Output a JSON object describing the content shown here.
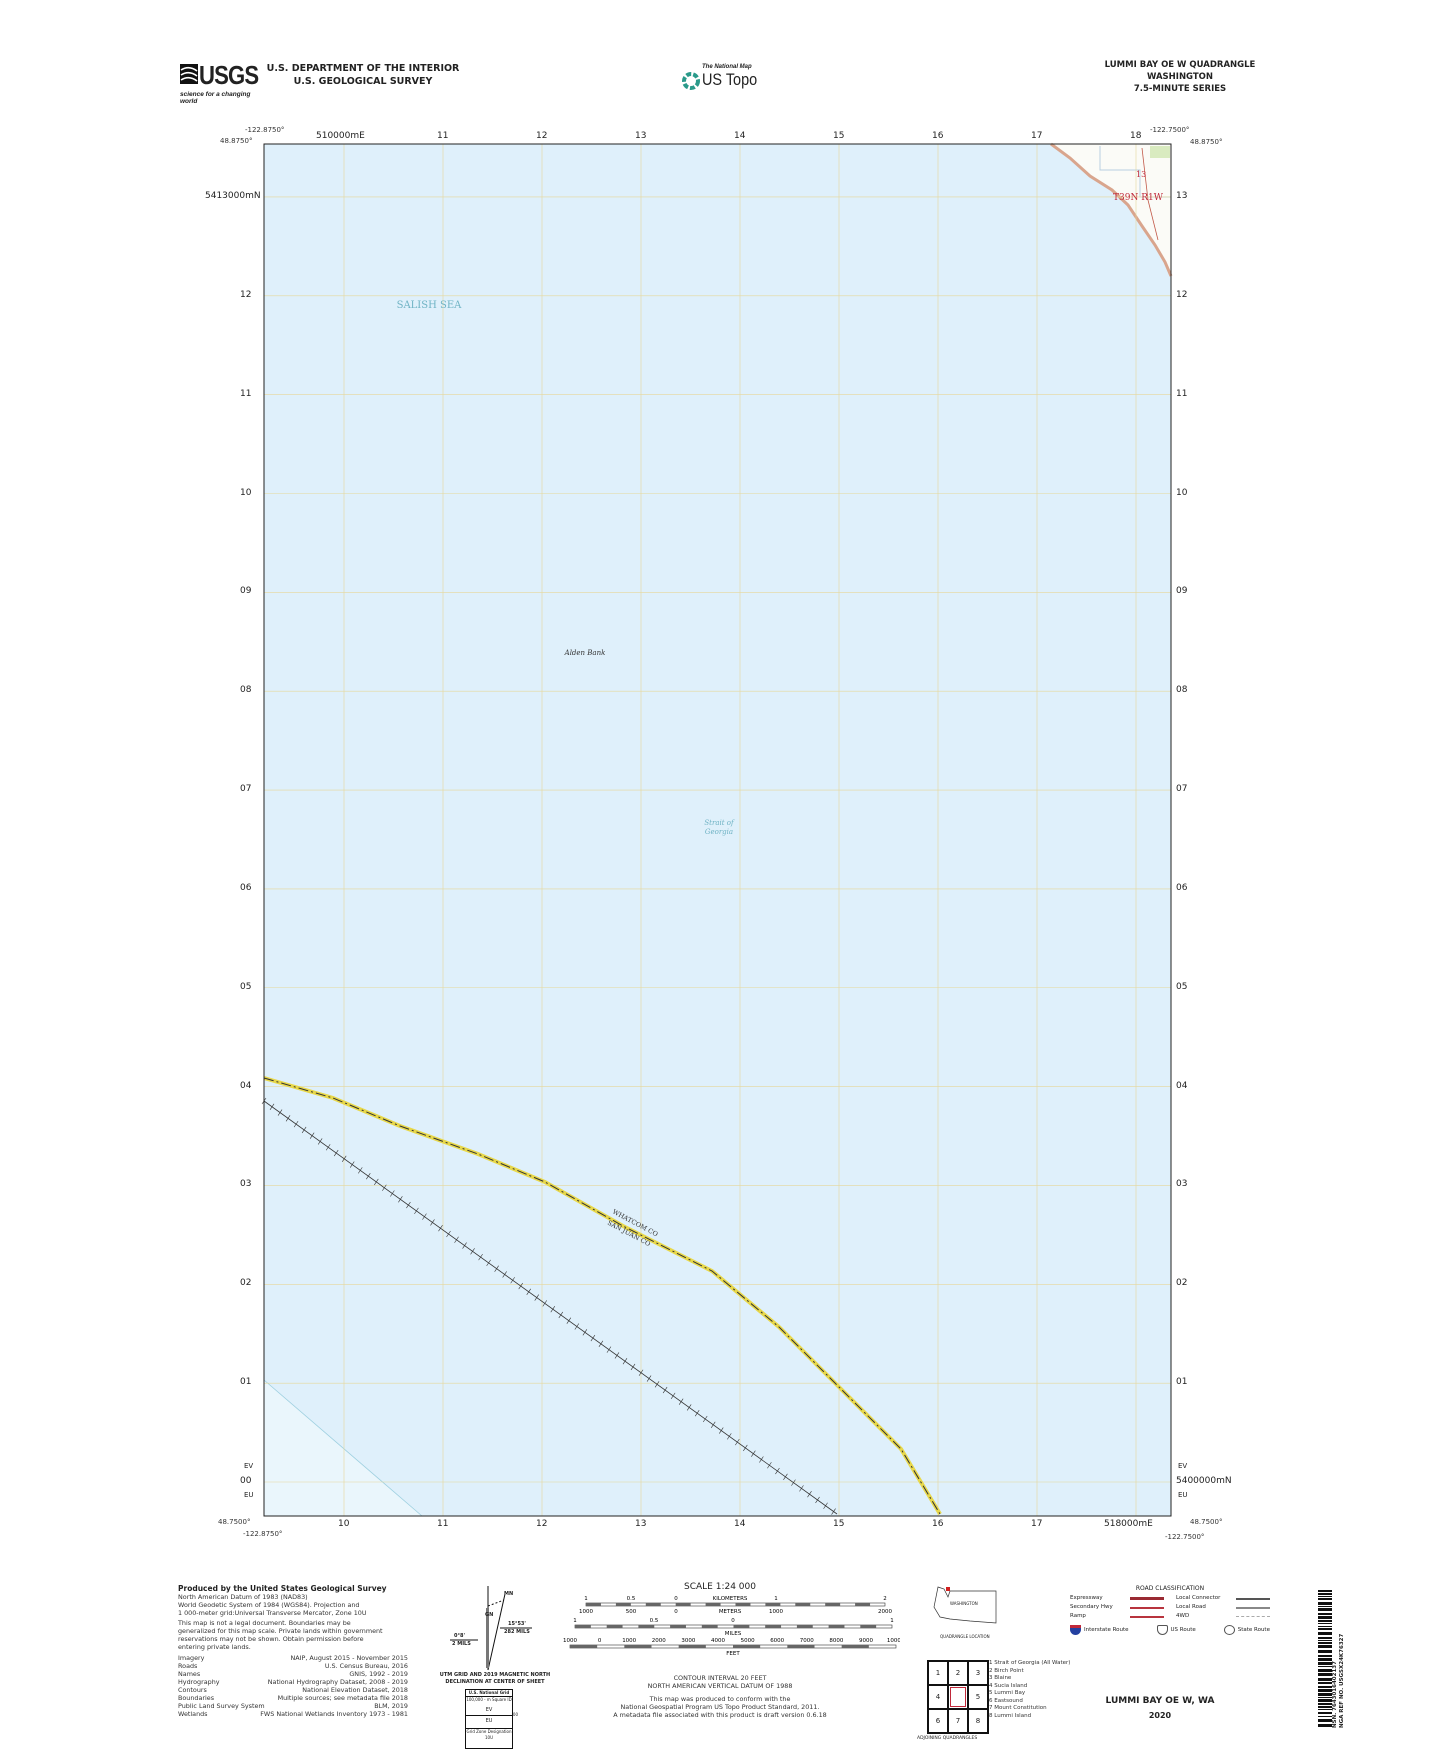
{
  "header": {
    "usgs_logo_text": "USGS",
    "usgs_tagline": "science for a changing world",
    "department": "U.S. DEPARTMENT OF THE INTERIOR",
    "survey": "U.S. GEOLOGICAL SURVEY",
    "national_map": "The National Map",
    "us_topo": "US Topo",
    "quad_title": "LUMMI BAY OE W QUADRANGLE",
    "state": "WASHINGTON",
    "series": "7.5-MINUTE SERIES"
  },
  "map": {
    "corners": {
      "top_left_lon": "-122.8750°",
      "top_left_lat": "48.8750°",
      "top_right_lon": "-122.7500°",
      "top_right_lat": "48.8750°",
      "bottom_left_lon": "-122.8750°",
      "bottom_left_lat": "48.7500°",
      "bottom_right_lon": "-122.7500°",
      "bottom_right_lat": "48.7500°"
    },
    "eastings_top": [
      "510000mE",
      "11",
      "12",
      "13",
      "14",
      "15",
      "16",
      "17",
      "18"
    ],
    "eastings_bottom": [
      "10",
      "11",
      "12",
      "13",
      "14",
      "15",
      "16",
      "17",
      "518000mE"
    ],
    "northings_left": [
      "5413000mN",
      "12",
      "11",
      "10",
      "09",
      "08",
      "07",
      "06",
      "05",
      "04",
      "03",
      "02",
      "01",
      "00"
    ],
    "northings_right": [
      "13",
      "12",
      "11",
      "10",
      "09",
      "08",
      "07",
      "06",
      "05",
      "04",
      "03",
      "02",
      "01",
      "5400000mN"
    ],
    "grid_zone_left": {
      "upper": "EV",
      "lower": "EU"
    },
    "grid_zone_right": {
      "upper": "EV",
      "lower": "EU"
    },
    "labels": {
      "salish_sea": "SALISH SEA",
      "alden_bank": "Alden Bank",
      "strait_line1": "Strait of",
      "strait_line2": "Georgia",
      "county_north": "WHATCOM CO",
      "county_south": "SAN JUAN CO",
      "township": "T39N R1W",
      "section": "13"
    },
    "colors": {
      "water": "#dff0fb",
      "grid": "#e6d79a",
      "land": "#fbfbf7",
      "boundary": "#e8d84a",
      "township": "#c0283a"
    }
  },
  "footer": {
    "produced_by": "Produced by the United States Geological Survey",
    "datum_lines": [
      "North American Datum of 1983 (NAD83)",
      "World Geodetic System of 1984 (WGS84).  Projection and",
      "1 000-meter grid:Universal Transverse Mercator, Zone 10U"
    ],
    "disclaimer": [
      "This map is not a legal document. Boundaries may be",
      "generalized for this map scale. Private lands within government",
      "reservations may not be shown. Obtain permission before",
      "entering private lands."
    ],
    "credits": [
      {
        "item": "Imagery",
        "source": "NAIP, August 2015 - November 2015"
      },
      {
        "item": "Roads",
        "source": "U.S. Census Bureau, 2016"
      },
      {
        "item": "Names",
        "source": "GNIS, 1992 - 2019"
      },
      {
        "item": "Hydrography",
        "source": "National Hydrography Dataset, 2008 - 2019"
      },
      {
        "item": "Contours",
        "source": "National Elevation Dataset, 2018"
      },
      {
        "item": "Boundaries",
        "source": "Multiple sources; see metadata file 2018"
      },
      {
        "item": "Public Land Survey System",
        "source": "BLM, 2019"
      },
      {
        "item": "Wetlands",
        "source": "FWS National Wetlands Inventory 1973 - 1981"
      }
    ],
    "declination": {
      "gn_angle": "0°8'",
      "gn_mils": "2 MILS",
      "mn_angle": "15°53'",
      "mn_mils": "282 MILS",
      "gn_label": "GN",
      "mn_label": "MN",
      "caption_line1": "UTM GRID AND 2019 MAGNETIC NORTH",
      "caption_line2": "DECLINATION AT CENTER OF SHEET"
    },
    "grid_box": {
      "title": "U.S. National Grid",
      "subtitle": "100,000 - m Square ID",
      "upper": "EV",
      "lower": "EU",
      "easting": "00",
      "zone_title": "Grid Zone Designation",
      "zone": "10U"
    },
    "scale": {
      "title": "SCALE 1:24 000",
      "km_labels": [
        "1",
        "0.5",
        "0",
        "1",
        "2"
      ],
      "km_unit": "KILOMETERS",
      "m_labels": [
        "1000",
        "500",
        "0",
        "1000",
        "2000"
      ],
      "m_unit": "METERS",
      "mi_labels": [
        "1",
        "0.5",
        "0",
        "1"
      ],
      "mi_unit": "MILES",
      "ft_labels": [
        "1000",
        "0",
        "1000",
        "2000",
        "3000",
        "4000",
        "5000",
        "6000",
        "7000",
        "8000",
        "9000",
        "10000"
      ],
      "ft_unit": "FEET",
      "contour1": "CONTOUR INTERVAL 20 FEET",
      "contour2": "NORTH AMERICAN VERTICAL DATUM OF 1988",
      "conform": [
        "This map was produced to conform with the",
        "National Geospatial Program US Topo Product Standard, 2011.",
        "A metadata file associated with this product is draft version 0.6.18"
      ]
    },
    "location": {
      "state": "WASHINGTON",
      "caption": "QUADRANGLE LOCATION"
    },
    "adjoining": {
      "caption": "ADJOINING QUADRANGLES",
      "cells": [
        "1",
        "2",
        "3",
        "4",
        "5",
        "6",
        "7",
        "8"
      ],
      "names": [
        "1 Strait of Georgia (All Water)",
        "2 Birch Point",
        "3 Blaine",
        "4 Sucia Island",
        "5 Lummi Bay",
        "6 Eastsound",
        "7 Mount Constitution",
        "8 Lummi Island"
      ]
    },
    "roads": {
      "title": "ROAD CLASSIFICATION",
      "items": [
        {
          "label": "Expressway",
          "color": "#9a2a33"
        },
        {
          "label": "Secondary Hwy",
          "color": "#b8343e"
        },
        {
          "label": "Ramp",
          "color": "#b8343e"
        },
        {
          "label": "Local Connector",
          "color": "#555555"
        },
        {
          "label": "Local Road",
          "color": "#888888"
        },
        {
          "label": "4WD",
          "color": "#aaaaaa"
        }
      ],
      "shields": [
        "Interstate Route",
        "US Route",
        "State Route"
      ]
    },
    "quad_name": "LUMMI BAY OE W,  WA",
    "year": "2020",
    "barcode_nsn": "NSN. 7643016402137",
    "barcode_nga": "NGA REF NO. USGSX24K76327"
  }
}
